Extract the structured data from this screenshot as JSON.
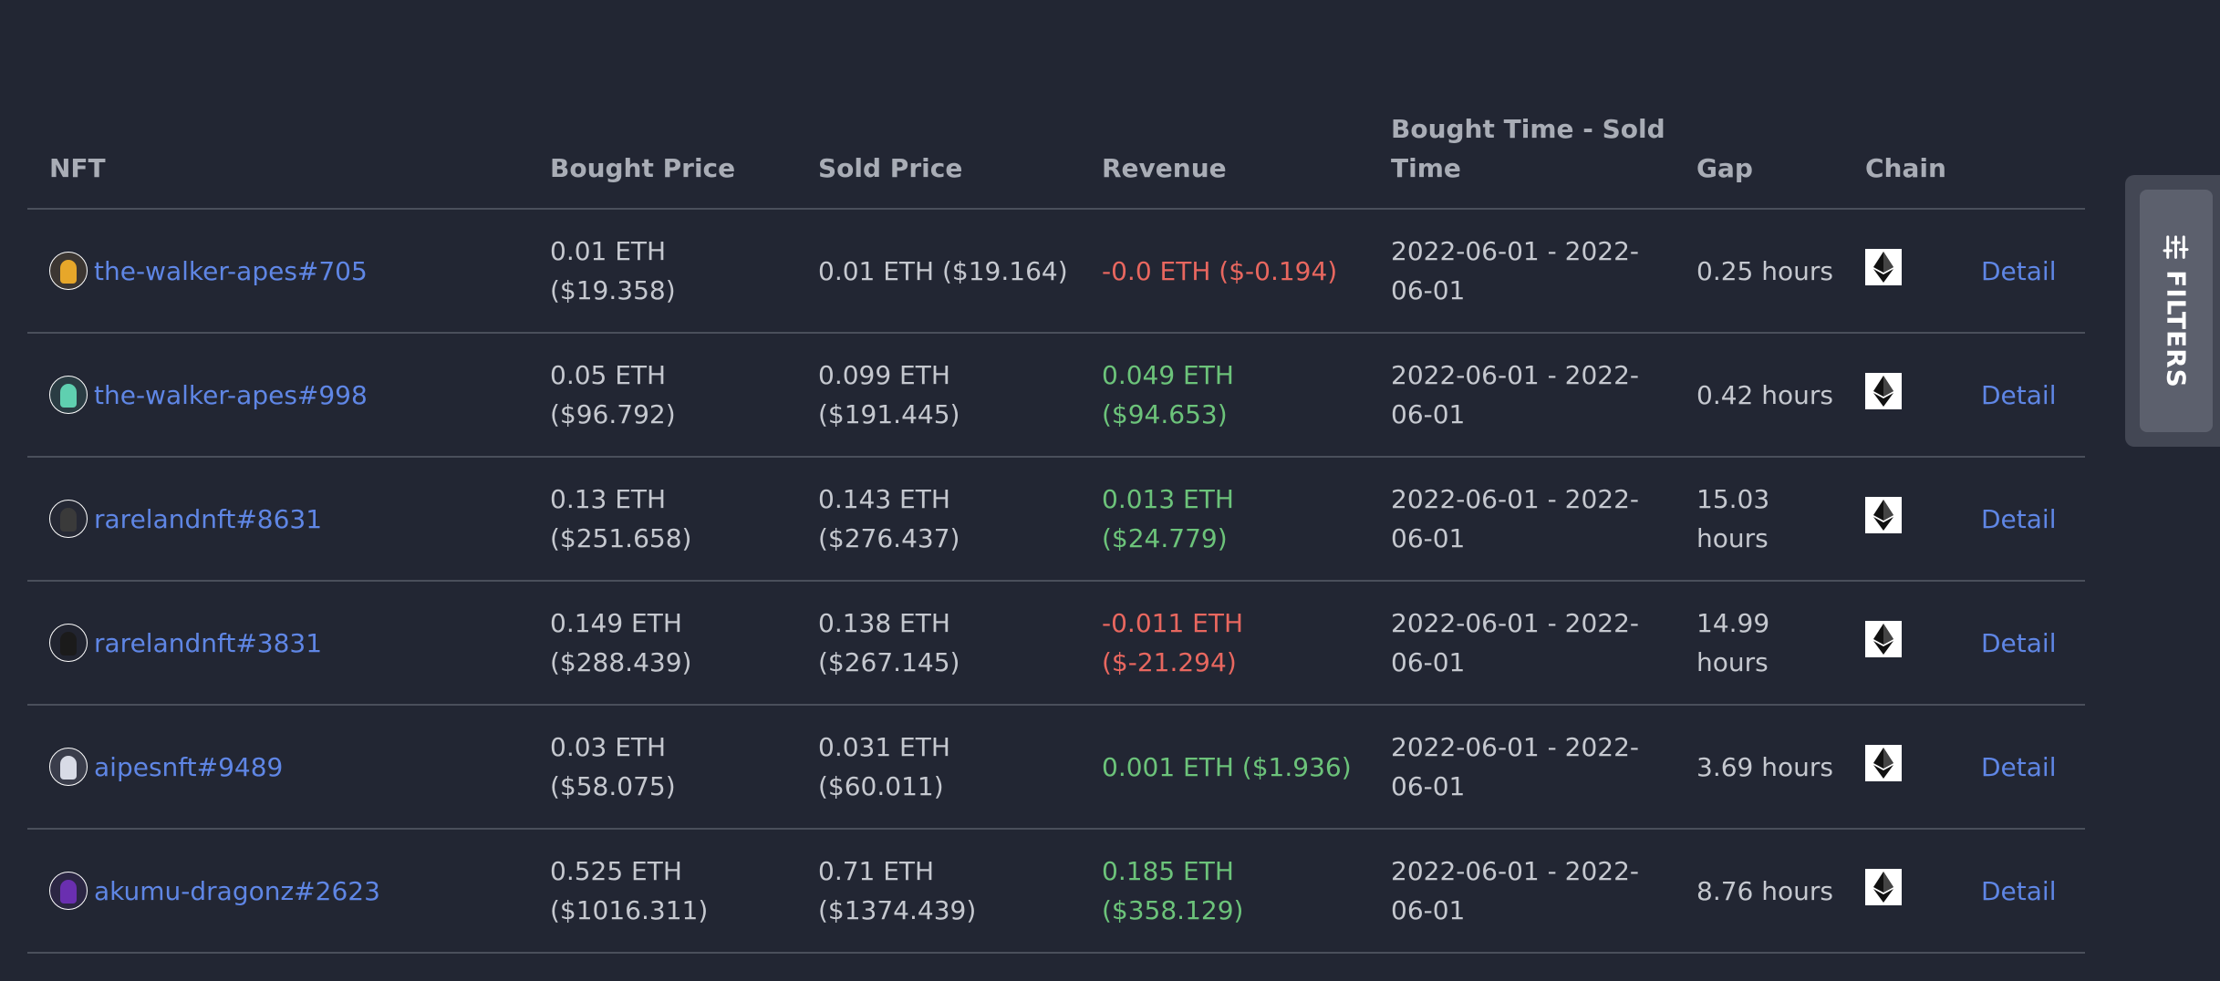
{
  "table": {
    "headers": {
      "nft": "NFT",
      "bought_price": "Bought Price",
      "sold_price": "Sold Price",
      "revenue": "Revenue",
      "time": "Bought Time - Sold Time",
      "gap": "Gap",
      "chain": "Chain"
    },
    "rows": [
      {
        "nft": "the-walker-apes#705",
        "avatar_color": "#e7a72a",
        "bought": "0.01 ETH ($19.358)",
        "sold": "0.01 ETH ($19.164)",
        "revenue": "-0.0 ETH ($-0.194)",
        "revenue_sign": "negative",
        "time": "2022-06-01 - 2022-06-01",
        "gap": "0.25 hours",
        "chain_icon": "ethereum-icon",
        "action": "Detail"
      },
      {
        "nft": "the-walker-apes#998",
        "avatar_color": "#5fd0b0",
        "bought": "0.05 ETH ($96.792)",
        "sold": "0.099 ETH ($191.445)",
        "revenue": "0.049 ETH ($94.653)",
        "revenue_sign": "positive",
        "time": "2022-06-01 - 2022-06-01",
        "gap": "0.42 hours",
        "chain_icon": "ethereum-icon",
        "action": "Detail"
      },
      {
        "nft": "rarelandnft#8631",
        "avatar_color": "#3a3a3a",
        "bought": "0.13 ETH ($251.658)",
        "sold": "0.143 ETH ($276.437)",
        "revenue": "0.013 ETH ($24.779)",
        "revenue_sign": "positive",
        "time": "2022-06-01 - 2022-06-01",
        "gap": "15.03 hours",
        "chain_icon": "ethereum-icon",
        "action": "Detail"
      },
      {
        "nft": "rarelandnft#3831",
        "avatar_color": "#1b1b1b",
        "bought": "0.149 ETH ($288.439)",
        "sold": "0.138 ETH ($267.145)",
        "revenue": "-0.011 ETH ($-21.294)",
        "revenue_sign": "negative",
        "time": "2022-06-01 - 2022-06-01",
        "gap": "14.99 hours",
        "chain_icon": "ethereum-icon",
        "action": "Detail"
      },
      {
        "nft": "aipesnft#9489",
        "avatar_color": "#d8dbe6",
        "bought": "0.03 ETH ($58.075)",
        "sold": "0.031 ETH ($60.011)",
        "revenue": "0.001 ETH ($1.936)",
        "revenue_sign": "positive",
        "time": "2022-06-01 - 2022-06-01",
        "gap": "3.69 hours",
        "chain_icon": "ethereum-icon",
        "action": "Detail"
      },
      {
        "nft": "akumu-dragonz#2623",
        "avatar_color": "#6a2fb0",
        "bought": "0.525 ETH ($1016.311)",
        "sold": "0.71 ETH ($1374.439)",
        "revenue": "0.185 ETH ($358.129)",
        "revenue_sign": "positive",
        "time": "2022-06-01 - 2022-06-01",
        "gap": "8.76 hours",
        "chain_icon": "ethereum-icon",
        "action": "Detail"
      }
    ]
  },
  "filters": {
    "label": "FILTERS",
    "icon": "sliders-icon"
  },
  "colors": {
    "background": "#222633",
    "link": "#5f86e5",
    "negative": "#e8675f",
    "positive": "#6cc37a"
  }
}
